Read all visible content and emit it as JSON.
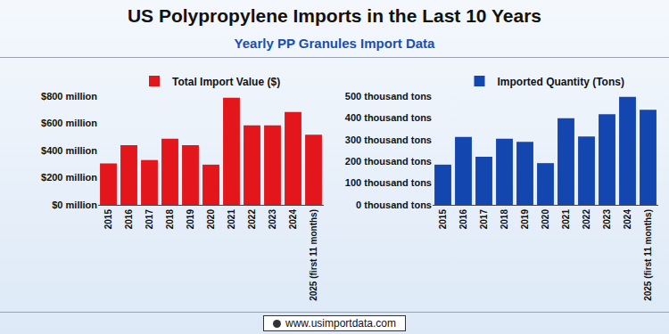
{
  "title": "US Polypropylene Imports in the Last 10 Years",
  "subtitle": "Yearly PP Granules Import Data",
  "footer": "www.usimportdata.com",
  "chart_data": [
    {
      "type": "bar",
      "categories": [
        "2015",
        "2016",
        "2017",
        "2018",
        "2019",
        "2020",
        "2021",
        "2022",
        "2023",
        "2024",
        "2025 (first 11 months)"
      ],
      "series": [
        {
          "name": "Total Import Value ($)",
          "color": "#e3161b",
          "values": [
            305000000,
            440000000,
            330000000,
            487000000,
            440000000,
            296000000,
            788000000,
            585000000,
            585000000,
            684000000,
            516000000
          ]
        }
      ],
      "ylim": [
        0,
        800000000
      ],
      "yticks": [
        {
          "value": 0,
          "label": "$0 million"
        },
        {
          "value": 200000000,
          "label": "$200 million"
        },
        {
          "value": 400000000,
          "label": "$400 million"
        },
        {
          "value": 600000000,
          "label": "$600 million"
        },
        {
          "value": 800000000,
          "label": "$800 million"
        }
      ],
      "grid": false,
      "legend": "top"
    },
    {
      "type": "bar",
      "categories": [
        "2015",
        "2016",
        "2017",
        "2018",
        "2019",
        "2020",
        "2021",
        "2022",
        "2023",
        "2024",
        "2025 (first 11 months)"
      ],
      "series": [
        {
          "name": "Imported Quantity (Tons)",
          "color": "#1446b0",
          "values": [
            185000,
            312000,
            221000,
            304000,
            290000,
            192000,
            399000,
            315000,
            417000,
            497000,
            438000
          ]
        }
      ],
      "ylim": [
        0,
        500000
      ],
      "yticks": [
        {
          "value": 0,
          "label": "0 thousand tons"
        },
        {
          "value": 100000,
          "label": "100 thousand tons"
        },
        {
          "value": 200000,
          "label": "200 thousand tons"
        },
        {
          "value": 300000,
          "label": "300 thousand tons"
        },
        {
          "value": 400000,
          "label": "400 thousand tons"
        },
        {
          "value": 500000,
          "label": "500 thousand tons"
        }
      ],
      "grid": false,
      "legend": "top"
    }
  ]
}
